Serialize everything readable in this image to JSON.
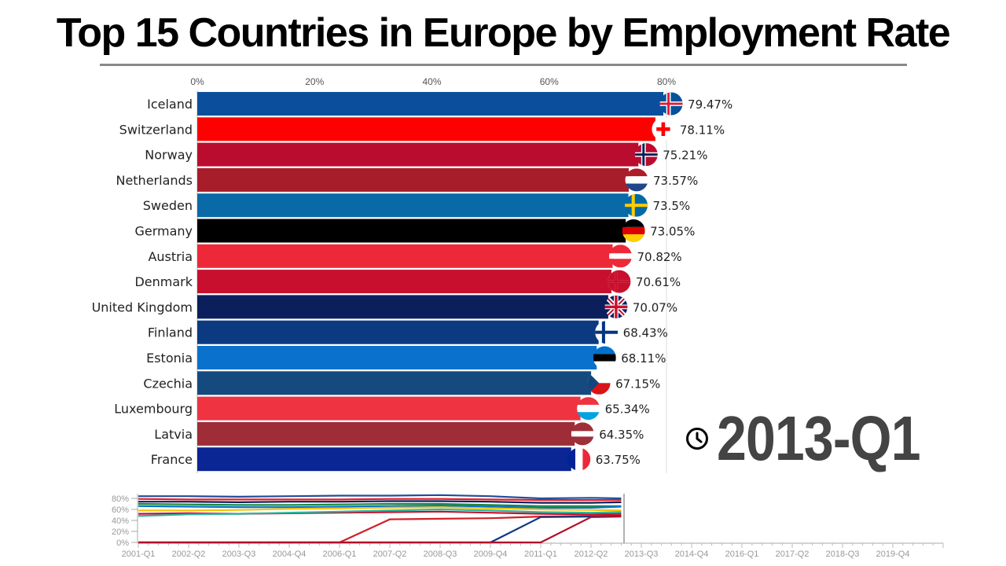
{
  "title": "Top 15 Countries in Europe by Employment Rate",
  "period": "2013-Q1",
  "clock_icon": "clock-icon",
  "chart_data": [
    {
      "type": "bar",
      "orientation": "horizontal",
      "xlim": [
        0,
        80
      ],
      "x_ticks": [
        "0%",
        "20%",
        "40%",
        "60%",
        "80%"
      ],
      "x_tick_values": [
        0,
        20,
        40,
        60,
        80
      ],
      "categories": [
        "Iceland",
        "Switzerland",
        "Norway",
        "Netherlands",
        "Sweden",
        "Germany",
        "Austria",
        "Denmark",
        "United Kingdom",
        "Finland",
        "Estonia",
        "Czechia",
        "Luxembourg",
        "Latvia",
        "France"
      ],
      "values": [
        79.47,
        78.11,
        75.21,
        73.57,
        73.5,
        73.05,
        70.82,
        70.61,
        70.07,
        68.43,
        68.11,
        67.15,
        65.34,
        64.35,
        63.75
      ],
      "labels": [
        "79.47%",
        "78.11%",
        "75.21%",
        "73.57%",
        "73.5%",
        "73.05%",
        "70.82%",
        "70.61%",
        "70.07%",
        "68.43%",
        "68.11%",
        "67.15%",
        "65.34%",
        "64.35%",
        "63.75%"
      ],
      "colors": [
        "#0b4f9c",
        "#ff0000",
        "#ba0c2f",
        "#a81d2a",
        "#0a6aa7",
        "#000000",
        "#ed2939",
        "#c8102e",
        "#0b1f5c",
        "#0b3a80",
        "#0a72cc",
        "#154a7e",
        "#ef3340",
        "#9e2d38",
        "#0a2594"
      ],
      "flags": [
        "iceland-flag",
        "switzerland-flag",
        "norway-flag",
        "netherlands-flag",
        "sweden-flag",
        "germany-flag",
        "austria-flag",
        "denmark-flag",
        "uk-flag",
        "finland-flag",
        "estonia-flag",
        "czechia-flag",
        "luxembourg-flag",
        "latvia-flag",
        "france-flag"
      ],
      "grid": false
    },
    {
      "type": "line",
      "ylim": [
        0,
        80
      ],
      "y_ticks": [
        "0%",
        "20%",
        "40%",
        "60%",
        "80%"
      ],
      "y_tick_values": [
        0,
        20,
        40,
        60,
        80
      ],
      "x_ticks": [
        "2001-Q1",
        "2002-Q2",
        "2003-Q3",
        "2004-Q4",
        "2006-Q1",
        "2007-Q2",
        "2008-Q3",
        "2009-Q4",
        "2011-Q1",
        "2012-Q2",
        "2013-Q3",
        "2014-Q4",
        "2016-Q1",
        "2017-Q2",
        "2018-Q3",
        "2019-Q4"
      ],
      "current": "2013-Q1",
      "x_quarters": [
        0,
        5,
        10,
        15,
        20,
        25,
        30,
        35,
        40,
        45,
        48
      ],
      "series": [
        {
          "color": "#1f4e9c",
          "values": [
            84,
            84,
            83,
            84,
            85,
            85,
            86,
            84,
            80,
            81,
            80
          ]
        },
        {
          "color": "#e31b23",
          "values": [
            79,
            78,
            78,
            78,
            78,
            79,
            79,
            78,
            77,
            77,
            77
          ]
        },
        {
          "color": "#0b1f5c",
          "values": [
            74,
            74,
            73,
            74,
            74,
            75,
            75,
            74,
            72,
            72,
            73
          ]
        },
        {
          "color": "#1a8a3a",
          "values": [
            70,
            69,
            68,
            68,
            69,
            70,
            70,
            68,
            66,
            66,
            66
          ]
        },
        {
          "color": "#0a72cc",
          "values": [
            66,
            65,
            64,
            64,
            65,
            66,
            67,
            65,
            63,
            63,
            65
          ]
        },
        {
          "color": "#f5c400",
          "values": [
            58,
            58,
            59,
            61,
            62,
            63,
            64,
            62,
            60,
            59,
            58
          ]
        },
        {
          "color": "#c8102e",
          "values": [
            52,
            53,
            52,
            53,
            54,
            55,
            56,
            54,
            52,
            51,
            52
          ]
        },
        {
          "color": "#2bb5a0",
          "values": [
            48,
            51,
            52,
            54,
            56,
            58,
            60,
            58,
            55,
            54,
            55
          ]
        },
        {
          "color": "#d0202a",
          "values": [
            0,
            0,
            0,
            0,
            0,
            42,
            43,
            44,
            47,
            48,
            49
          ]
        },
        {
          "color": "#0b3a80",
          "values": [
            0,
            0,
            0,
            0,
            0,
            0,
            0,
            0,
            46,
            47,
            48
          ]
        },
        {
          "color": "#b0102a",
          "values": [
            0,
            0,
            0,
            0,
            0,
            0,
            0,
            0,
            0,
            46,
            47
          ]
        }
      ]
    }
  ]
}
